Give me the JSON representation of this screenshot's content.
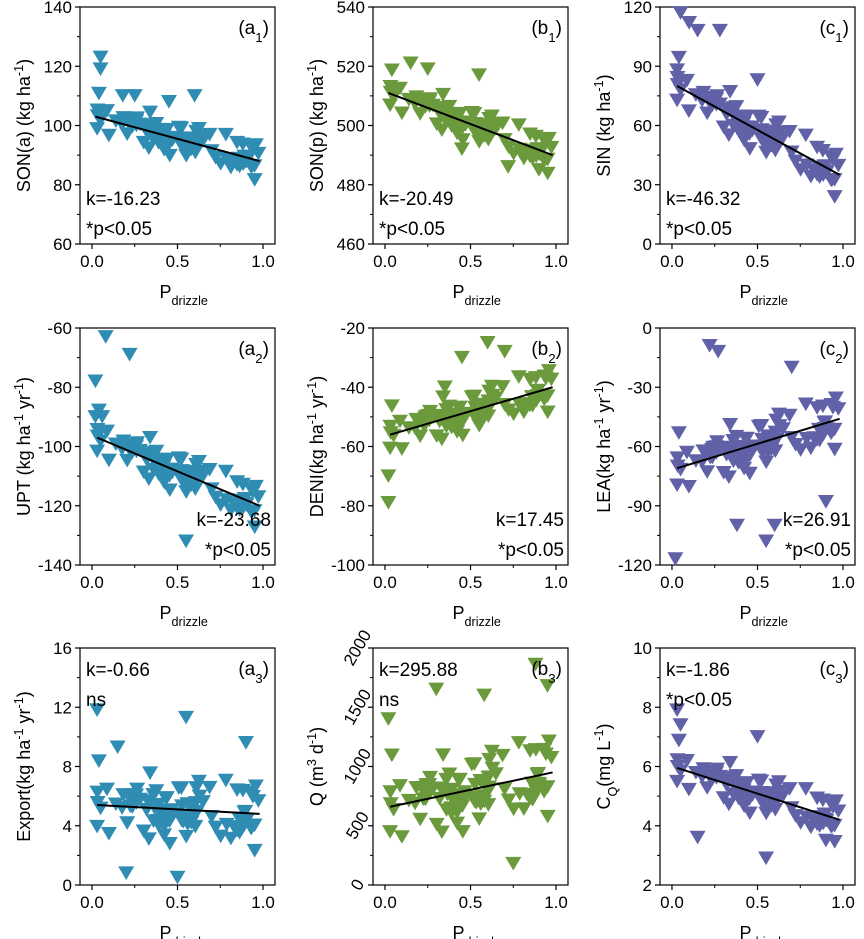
{
  "chart_data": [
    {
      "id": "a1",
      "panel_label": "(a",
      "panel_sub": "1",
      "type": "scatter",
      "color": "#2f8cb3",
      "ylabel": "SON(a) (kg ha⁻¹)",
      "yticks": [
        60,
        80,
        100,
        120,
        140
      ],
      "ylim": [
        60,
        140
      ],
      "ylabels_rotated": false,
      "xticks": [
        0.0,
        0.5,
        1.0
      ],
      "xtick_labels": [
        "0.0",
        "0.5",
        "1.0"
      ],
      "xlim": [
        -0.07,
        1.07
      ],
      "xlabel_main": "P",
      "xlabel_sub": "drizzle",
      "k_text": "k=-16.23",
      "p_text": "*p<0.05",
      "stats_pos": "bottom-left",
      "line": {
        "x": [
          0.02,
          0.98
        ],
        "y": [
          103,
          88
        ]
      },
      "points": {
        "n": 95,
        "seed": 11,
        "spread": 6
      },
      "extra_points": [
        [
          0.05,
          123
        ],
        [
          0.05,
          119
        ],
        [
          0.18,
          110
        ],
        [
          0.25,
          110
        ],
        [
          0.45,
          108
        ],
        [
          0.6,
          110
        ]
      ]
    },
    {
      "id": "b1",
      "panel_label": "(b",
      "panel_sub": "1",
      "type": "scatter",
      "color": "#6a9a3c",
      "ylabel": "SON(p) (kg ha⁻¹)",
      "yticks": [
        460,
        480,
        500,
        520,
        540
      ],
      "ylim": [
        460,
        540
      ],
      "ylabels_rotated": false,
      "xticks": [
        0.0,
        0.5,
        1.0
      ],
      "xtick_labels": [
        "0.0",
        "0.5",
        "1.0"
      ],
      "xlim": [
        -0.07,
        1.07
      ],
      "xlabel_main": "P",
      "xlabel_sub": "drizzle",
      "k_text": "k=-20.49",
      "p_text": "*p<0.05",
      "stats_pos": "bottom-left",
      "line": {
        "x": [
          0.02,
          0.98
        ],
        "y": [
          511,
          490
        ]
      },
      "points": {
        "n": 95,
        "seed": 23,
        "spread": 6
      },
      "extra_points": [
        [
          0.25,
          519
        ],
        [
          0.15,
          521
        ],
        [
          0.55,
          517
        ],
        [
          0.45,
          492
        ],
        [
          0.72,
          486
        ],
        [
          0.9,
          485
        ]
      ]
    },
    {
      "id": "c1",
      "panel_label": "(c",
      "panel_sub": "1",
      "type": "scatter",
      "color": "#6161a8",
      "ylabel": "SIN (kg ha⁻¹)",
      "yticks": [
        0,
        30,
        60,
        90,
        120
      ],
      "ylim": [
        0,
        120
      ],
      "ylabels_rotated": false,
      "xticks": [
        0.0,
        0.5,
        1.0
      ],
      "xtick_labels": [
        "0.0",
        "0.5",
        "1.0"
      ],
      "xlim": [
        -0.07,
        1.07
      ],
      "xlabel_main": "P",
      "xlabel_sub": "drizzle",
      "k_text": "k=-46.32",
      "p_text": "*p<0.05",
      "stats_pos": "bottom-left",
      "line": {
        "x": [
          0.03,
          0.98
        ],
        "y": [
          80,
          35
        ]
      },
      "points": {
        "n": 95,
        "seed": 37,
        "spread": 11
      },
      "extra_points": [
        [
          0.05,
          117
        ],
        [
          0.1,
          112
        ],
        [
          0.15,
          108
        ],
        [
          0.28,
          108
        ],
        [
          0.03,
          88
        ],
        [
          0.5,
          83
        ]
      ]
    },
    {
      "id": "a2",
      "panel_label": "(a",
      "panel_sub": "2",
      "type": "scatter",
      "color": "#2f8cb3",
      "ylabel": "UPT (kg ha⁻¹ yr⁻¹)",
      "yticks": [
        -140,
        -120,
        -100,
        -80,
        -60
      ],
      "ylim": [
        -140,
        -60
      ],
      "ylabels_rotated": false,
      "xticks": [
        0.0,
        0.5,
        1.0
      ],
      "xtick_labels": [
        "0.0",
        "0.5",
        "1.0"
      ],
      "xlim": [
        -0.07,
        1.07
      ],
      "xlabel_main": "P",
      "xlabel_sub": "drizzle",
      "k_text": "k=-23.68",
      "p_text": "*p<0.05",
      "stats_pos": "bottom-right",
      "line": {
        "x": [
          0.03,
          0.98
        ],
        "y": [
          -97,
          -120
        ]
      },
      "points": {
        "n": 95,
        "seed": 41,
        "spread": 7
      },
      "extra_points": [
        [
          0.08,
          -63
        ],
        [
          0.02,
          -78
        ],
        [
          0.22,
          -69
        ],
        [
          0.02,
          -90
        ],
        [
          0.06,
          -90
        ],
        [
          0.55,
          -132
        ]
      ]
    },
    {
      "id": "b2",
      "panel_label": "(b",
      "panel_sub": "2",
      "type": "scatter",
      "color": "#6a9a3c",
      "ylabel": "DENI(kg ha⁻¹ yr⁻¹)",
      "yticks": [
        -100,
        -80,
        -60,
        -40,
        -20
      ],
      "ylim": [
        -100,
        -20
      ],
      "ylabels_rotated": false,
      "xticks": [
        0.0,
        0.5,
        1.0
      ],
      "xtick_labels": [
        "0.0",
        "0.5",
        "1.0"
      ],
      "xlim": [
        -0.07,
        1.07
      ],
      "xlabel_main": "P",
      "xlabel_sub": "drizzle",
      "k_text": "k=17.45",
      "p_text": "*p<0.05",
      "stats_pos": "bottom-right",
      "line": {
        "x": [
          0.03,
          0.98
        ],
        "y": [
          -56,
          -40
        ]
      },
      "points": {
        "n": 95,
        "seed": 53,
        "spread": 7
      },
      "extra_points": [
        [
          0.02,
          -79
        ],
        [
          0.02,
          -70
        ],
        [
          0.6,
          -25
        ],
        [
          0.7,
          -28
        ],
        [
          0.35,
          -40
        ],
        [
          0.45,
          -30
        ]
      ]
    },
    {
      "id": "c2",
      "panel_label": "(c",
      "panel_sub": "2",
      "type": "scatter",
      "color": "#6161a8",
      "ylabel": "LEA(kg ha⁻¹ yr⁻¹)",
      "yticks": [
        -120,
        -90,
        -60,
        -30,
        0
      ],
      "ylim": [
        -120,
        0
      ],
      "ylabels_rotated": false,
      "xticks": [
        0.0,
        0.5,
        1.0
      ],
      "xtick_labels": [
        "0.0",
        "0.5",
        "1.0"
      ],
      "xlim": [
        -0.07,
        1.07
      ],
      "xlabel_main": "P",
      "xlabel_sub": "drizzle",
      "k_text": "k=26.91",
      "p_text": "*p<0.05",
      "stats_pos": "bottom-right",
      "line": {
        "x": [
          0.03,
          0.98
        ],
        "y": [
          -71,
          -46
        ]
      },
      "points": {
        "n": 95,
        "seed": 67,
        "spread": 13
      },
      "extra_points": [
        [
          0.22,
          -9
        ],
        [
          0.27,
          -12
        ],
        [
          0.02,
          -117
        ],
        [
          0.38,
          -100
        ],
        [
          0.55,
          -108
        ],
        [
          0.6,
          -100
        ],
        [
          0.7,
          -20
        ],
        [
          0.9,
          -88
        ]
      ]
    },
    {
      "id": "a3",
      "panel_label": "(a",
      "panel_sub": "3",
      "type": "scatter",
      "color": "#2f8cb3",
      "ylabel": "Export(kg ha⁻¹ yr⁻¹)",
      "yticks": [
        0,
        4,
        8,
        12,
        16
      ],
      "ylim": [
        0,
        16
      ],
      "ylabels_rotated": false,
      "xticks": [
        0.0,
        0.5,
        1.0
      ],
      "xtick_labels": [
        "0.0",
        "0.5",
        "1.0"
      ],
      "xlim": [
        -0.07,
        1.07
      ],
      "xlabel_main": "P",
      "xlabel_sub": "drizzle",
      "k_text": "k=-0.66",
      "p_text": "ns",
      "stats_pos": "top-left",
      "line": {
        "x": [
          0.03,
          0.98
        ],
        "y": [
          5.4,
          4.8
        ]
      },
      "points": {
        "n": 95,
        "seed": 79,
        "spread": 2.2
      },
      "extra_points": [
        [
          0.03,
          11.8
        ],
        [
          0.55,
          11.3
        ],
        [
          0.9,
          9.6
        ],
        [
          0.5,
          0.5
        ],
        [
          0.2,
          0.8
        ],
        [
          0.15,
          9.3
        ]
      ]
    },
    {
      "id": "b3",
      "panel_label": "(b",
      "panel_sub": "3",
      "type": "scatter",
      "color": "#6a9a3c",
      "ylabel": "Q (m³ d⁻¹)",
      "yticks": [
        0,
        500,
        1000,
        1500,
        2000
      ],
      "ylim": [
        0,
        2000
      ],
      "ylabels_rotated": true,
      "xticks": [
        0.0,
        0.5,
        1.0
      ],
      "xtick_labels": [
        "0.0",
        "0.5",
        "1.0"
      ],
      "xlim": [
        -0.07,
        1.07
      ],
      "xlabel_main": "P",
      "xlabel_sub": "drizzle",
      "k_text": "k=295.88",
      "p_text": "ns",
      "stats_pos": "top-left",
      "line": {
        "x": [
          0.03,
          0.98
        ],
        "y": [
          660,
          950
        ]
      },
      "points": {
        "n": 95,
        "seed": 97,
        "spread": 320
      },
      "extra_points": [
        [
          0.3,
          1650
        ],
        [
          0.88,
          1860
        ],
        [
          0.95,
          1680
        ],
        [
          0.02,
          1400
        ],
        [
          0.58,
          1600
        ],
        [
          0.75,
          180
        ]
      ]
    },
    {
      "id": "c3",
      "panel_label": "(c",
      "panel_sub": "3",
      "type": "scatter",
      "color": "#6161a8",
      "ylabel": "C_Q(mg L⁻¹)",
      "yticks": [
        2,
        4,
        6,
        8,
        10
      ],
      "ylim": [
        2,
        10
      ],
      "ylabels_rotated": false,
      "xticks": [
        0.0,
        0.5,
        1.0
      ],
      "xtick_labels": [
        "0.0",
        "0.5",
        "1.0"
      ],
      "xlim": [
        -0.07,
        1.07
      ],
      "xlabel_main": "P",
      "xlabel_sub": "drizzle",
      "k_text": "k=-1.86",
      "p_text": "*p<0.05",
      "stats_pos": "top-left",
      "line": {
        "x": [
          0.03,
          0.98
        ],
        "y": [
          5.95,
          4.2
        ]
      },
      "points": {
        "n": 95,
        "seed": 113,
        "spread": 0.7
      },
      "extra_points": [
        [
          0.03,
          7.9
        ],
        [
          0.05,
          7.4
        ],
        [
          0.5,
          7.0
        ],
        [
          0.55,
          2.9
        ],
        [
          0.15,
          3.6
        ],
        [
          0.9,
          3.5
        ]
      ]
    }
  ]
}
